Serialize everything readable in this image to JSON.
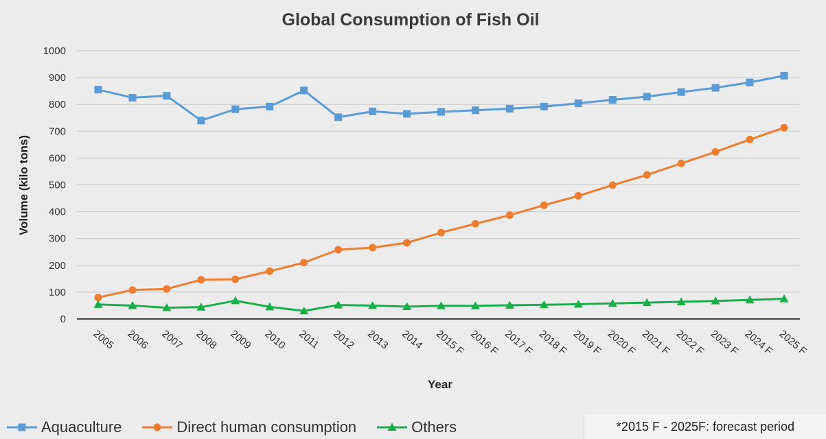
{
  "chart_data": {
    "type": "line",
    "title": "Global Consumption of Fish Oil",
    "xlabel": "Year",
    "ylabel": "Volume (kilo tons)",
    "ylim": [
      0,
      1000
    ],
    "yticks": [
      0,
      100,
      200,
      300,
      400,
      500,
      600,
      700,
      800,
      900,
      1000
    ],
    "grid": true,
    "legend_placement": "bottom",
    "categories": [
      "2005",
      "2006",
      "2007",
      "2008",
      "2009",
      "2010",
      "2011",
      "2012",
      "2013",
      "2014",
      "2015 F",
      "2016 F",
      "2017 F",
      "2018 F",
      "2019 F",
      "2020 F",
      "2021 F",
      "2022 F",
      "2023 F",
      "2024 F",
      "2025 F"
    ],
    "series": [
      {
        "name": "Aquaculture",
        "color": "#5b9bd5",
        "marker": "square",
        "values": [
          855,
          825,
          832,
          740,
          782,
          792,
          852,
          752,
          774,
          765,
          772,
          778,
          784,
          792,
          804,
          817,
          829,
          846,
          862,
          882,
          907
        ]
      },
      {
        "name": "Direct human consumption",
        "color": "#ed7d31",
        "marker": "circle",
        "values": [
          80,
          108,
          112,
          146,
          148,
          178,
          210,
          258,
          266,
          284,
          322,
          355,
          387,
          424,
          459,
          499,
          537,
          580,
          623,
          669,
          713
        ]
      },
      {
        "name": "Others",
        "color": "#1aae4a",
        "marker": "triangle",
        "values": [
          54,
          50,
          42,
          44,
          68,
          45,
          30,
          52,
          50,
          46,
          49,
          49,
          51,
          53,
          55,
          58,
          61,
          64,
          67,
          71,
          75
        ]
      }
    ],
    "note": "*2015 F - 2025F: forecast period"
  }
}
